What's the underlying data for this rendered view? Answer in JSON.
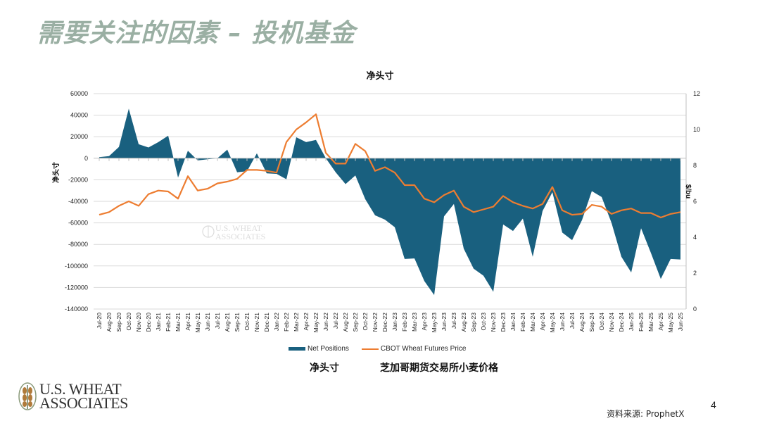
{
  "slide": {
    "title": "需要关注的因素 – 投机基金",
    "legend_cn_net": "净头寸",
    "legend_cn_price": "芝加哥期货交易所小麦价格",
    "source": "资料来源: ProphetX",
    "page_number": "4",
    "logo_text_line1": "U.S. WHEAT",
    "logo_text_line2": "ASSOCIATES"
  },
  "chart_data": {
    "type": "area+line",
    "title": "净头寸",
    "ylabel": "净头寸",
    "y2label": "$/bu",
    "ylim": [
      -140000,
      60000
    ],
    "yticks": [
      60000,
      40000,
      20000,
      0,
      -20000,
      -40000,
      -60000,
      -80000,
      -100000,
      -120000,
      -140000
    ],
    "y2lim": [
      0,
      12
    ],
    "y2ticks": [
      12,
      10,
      8,
      6,
      4,
      2,
      0
    ],
    "grid": true,
    "legend_position": "bottom",
    "categories": [
      "Jul-20",
      "Aug-20",
      "Sep-20",
      "Oct-20",
      "Nov-20",
      "Dec-20",
      "Jan-21",
      "Feb-21",
      "Mar-21",
      "Apr-21",
      "May-21",
      "Jun-21",
      "Jul-21",
      "Aug-21",
      "Sep-21",
      "Oct-21",
      "Nov-21",
      "Dec-21",
      "Jan-22",
      "Feb-22",
      "Mar-22",
      "Apr-22",
      "May-22",
      "Jun-22",
      "Jul-22",
      "Aug-22",
      "Sep-22",
      "Oct-22",
      "Nov-22",
      "Dec-22",
      "Jan-23",
      "Feb-23",
      "Mar-23",
      "Apr-23",
      "May-23",
      "Jun-23",
      "Jul-23",
      "Aug-23",
      "Sep-23",
      "Oct-23",
      "Nov-23",
      "Dec-23",
      "Jan-24",
      "Feb-24",
      "Mar-24",
      "Apr-24",
      "May-24",
      "Jun-24",
      "Jul-24",
      "Aug-24",
      "Sep-24",
      "Oct-24",
      "Nov-24",
      "Dec-24",
      "Jan-25",
      "Feb-25",
      "Mar-25",
      "Apr-25",
      "May-25",
      "Jun-25"
    ],
    "series": [
      {
        "name": "Net Positions",
        "type": "area",
        "axis": "left",
        "color": "#19607f",
        "values": [
          1000,
          2000,
          10500,
          46000,
          13000,
          10000,
          15000,
          21000,
          -18000,
          7000,
          -2000,
          -1000,
          0,
          8000,
          -13000,
          -12000,
          4500,
          -14000,
          -14500,
          -19500,
          19500,
          15000,
          17000,
          0,
          -13000,
          -24000,
          -16000,
          -38000,
          -53000,
          -57000,
          -64000,
          -93500,
          -93000,
          -114000,
          -127000,
          -54000,
          -42500,
          -84000,
          -102500,
          -109000,
          -124000,
          -61500,
          -67500,
          -56000,
          -91500,
          -49000,
          -31500,
          -69000,
          -76000,
          -57500,
          -30500,
          -36000,
          -60000,
          -91500,
          -106000,
          -65000,
          -88000,
          -112000,
          -93500,
          -94000
        ]
      },
      {
        "name": "CBOT Wheat Futures Price",
        "type": "line",
        "axis": "right",
        "color": "#ed7d31",
        "values": [
          5.25,
          5.4,
          5.75,
          6.0,
          5.75,
          6.4,
          6.6,
          6.55,
          6.15,
          7.4,
          6.6,
          6.7,
          7.0,
          7.1,
          7.25,
          7.75,
          7.75,
          7.7,
          7.6,
          9.3,
          10.0,
          10.4,
          10.85,
          8.7,
          8.1,
          8.1,
          9.2,
          8.8,
          7.7,
          7.9,
          7.6,
          6.9,
          6.9,
          6.15,
          5.95,
          6.35,
          6.6,
          5.7,
          5.4,
          5.55,
          5.7,
          6.3,
          5.95,
          5.75,
          5.6,
          5.85,
          6.8,
          5.5,
          5.25,
          5.3,
          5.8,
          5.7,
          5.3,
          5.5,
          5.6,
          5.35,
          5.35,
          5.1,
          5.3,
          5.4
        ]
      }
    ]
  }
}
